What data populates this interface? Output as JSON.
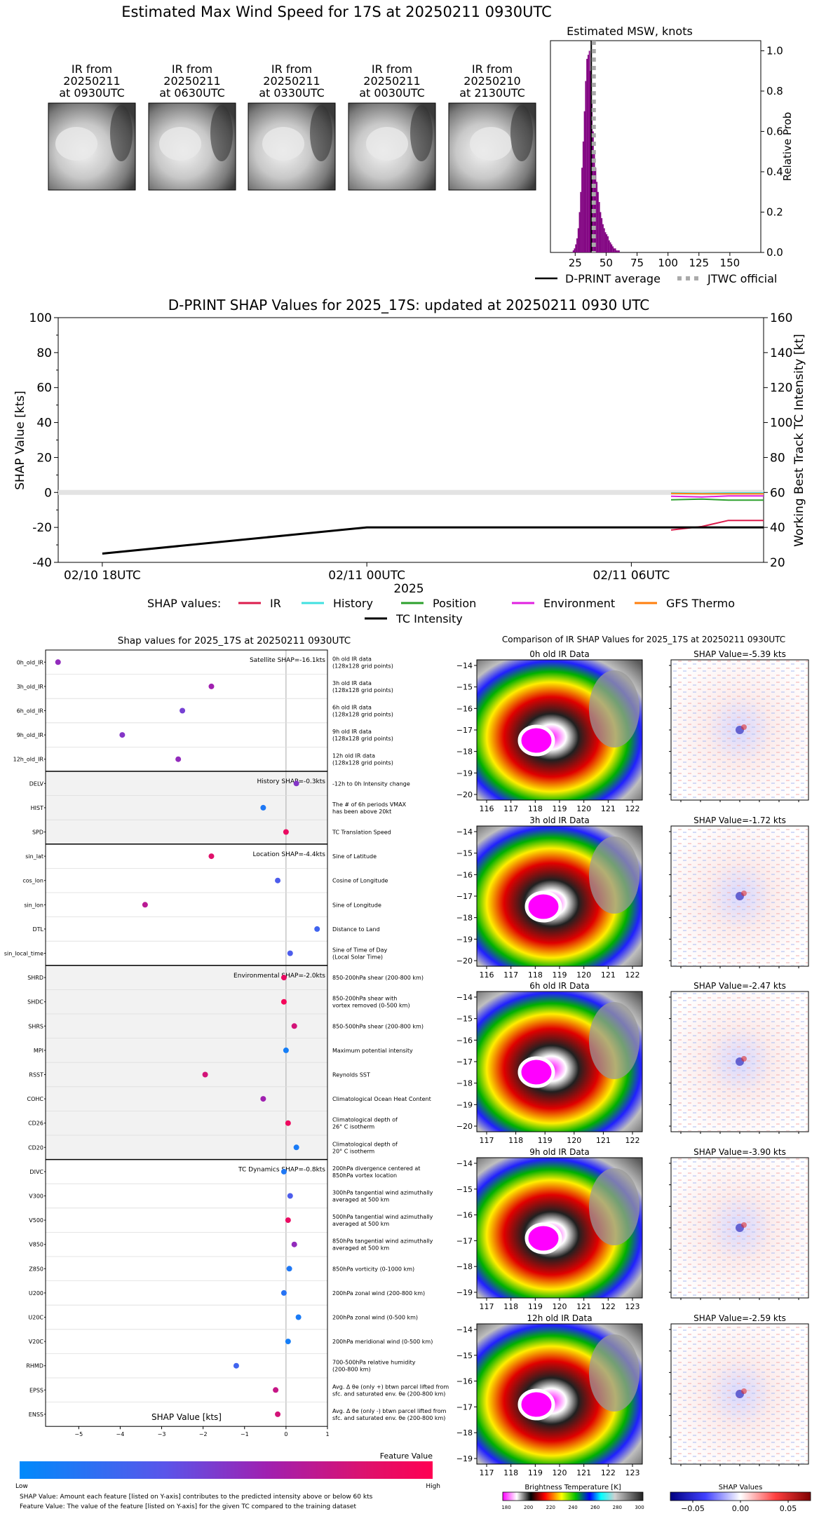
{
  "header": {
    "title": "Estimated Max Wind Speed for 17S at 20250211 0930UTC"
  },
  "ir_thumbnails": [
    {
      "line1": "IR from",
      "line2": "20250211",
      "line3": "at 0930UTC"
    },
    {
      "line1": "IR from",
      "line2": "20250211",
      "line3": "at 0630UTC"
    },
    {
      "line1": "IR from",
      "line2": "20250211",
      "line3": "at 0330UTC"
    },
    {
      "line1": "IR from",
      "line2": "20250211",
      "line3": "at 0030UTC"
    },
    {
      "line1": "IR from",
      "line2": "20250210",
      "line3": "at 2130UTC"
    }
  ],
  "chart_data": [
    {
      "id": "msw_histogram",
      "type": "bar",
      "title": "Estimated MSW, knots",
      "xlabel": "",
      "ylabel": "Relative Prob",
      "xlim": [
        5,
        175
      ],
      "ylim": [
        0,
        1.05
      ],
      "xticks": [
        25,
        50,
        75,
        100,
        125,
        150
      ],
      "yticks": [
        0.0,
        0.2,
        0.4,
        0.6,
        0.8,
        1.0
      ],
      "ytick_labels": [
        "0.0",
        "0.2",
        "0.4",
        "0.6",
        "0.8",
        "1.0"
      ],
      "bin_width": 1,
      "bins": [
        23,
        24,
        25,
        26,
        27,
        28,
        29,
        30,
        31,
        32,
        33,
        34,
        35,
        36,
        37,
        38,
        39,
        40,
        41,
        42,
        43,
        44,
        45,
        46,
        47,
        48,
        49,
        50,
        51,
        52,
        53,
        54,
        55,
        56,
        57,
        58,
        59,
        60
      ],
      "values": [
        0.01,
        0.02,
        0.04,
        0.07,
        0.12,
        0.2,
        0.3,
        0.42,
        0.55,
        0.7,
        0.85,
        0.96,
        0.98,
        1.0,
        0.9,
        0.75,
        0.6,
        0.5,
        0.42,
        0.35,
        0.3,
        0.25,
        0.2,
        0.17,
        0.14,
        0.12,
        0.1,
        0.09,
        0.08,
        0.06,
        0.05,
        0.04,
        0.03,
        0.02,
        0.02,
        0.01,
        0.01,
        0.01
      ],
      "dprint_average": 38,
      "jtwc_official": 40,
      "legend": [
        {
          "label": "D-PRINT average",
          "style": "solid",
          "color": "#000000"
        },
        {
          "label": "JTWC official",
          "style": "dotted",
          "color": "#aaaaaa"
        }
      ]
    },
    {
      "id": "shap_timeseries",
      "type": "line",
      "title": "D-PRINT SHAP Values for 2025_17S: updated at 20250211 0930 UTC",
      "xlabel": "2025",
      "ylabel": "SHAP Value [kts]",
      "ylabel_right": "Working Best Track TC Intensity [kt]",
      "ylim": [
        -40,
        100
      ],
      "ylim_right": [
        20,
        160
      ],
      "yticks": [
        -40,
        -20,
        0,
        20,
        40,
        60,
        80,
        100
      ],
      "yticks_right": [
        20,
        40,
        60,
        80,
        100,
        120,
        140,
        160
      ],
      "xlim_hours": [
        -1,
        15
      ],
      "xticks_hours": [
        0,
        6,
        12
      ],
      "xtick_labels": [
        "02/10 18UTC",
        "02/11 00UTC",
        "02/11 06UTC"
      ],
      "legend_title": "SHAP values:",
      "series": [
        {
          "name": "IR",
          "color": "#dc1c4c",
          "axis": "left",
          "x": [
            12.9,
            13.6,
            14.2,
            15.0
          ],
          "y": [
            -21.5,
            -19.5,
            -16.0,
            -16.0
          ]
        },
        {
          "name": "History",
          "color": "#40e0e0",
          "axis": "left",
          "x": [
            12.9,
            13.6,
            14.2,
            15.0
          ],
          "y": [
            -0.3,
            -0.5,
            -0.3,
            -0.3
          ]
        },
        {
          "name": "Position",
          "color": "#2ca02c",
          "axis": "left",
          "x": [
            12.9,
            13.6,
            14.2,
            15.0
          ],
          "y": [
            -4.2,
            -3.8,
            -4.4,
            -4.4
          ]
        },
        {
          "name": "Environment",
          "color": "#e020e0",
          "axis": "left",
          "x": [
            12.9,
            13.6,
            14.2,
            15.0
          ],
          "y": [
            -2.2,
            -2.6,
            -2.0,
            -2.0
          ]
        },
        {
          "name": "GFS Thermo",
          "color": "#ff7f0e",
          "axis": "left",
          "x": [
            12.9,
            13.6,
            14.2,
            15.0
          ],
          "y": [
            -0.6,
            -0.8,
            -0.8,
            -0.8
          ]
        },
        {
          "name": "TC Intensity",
          "color": "#000000",
          "axis": "right",
          "x": [
            0,
            6,
            12,
            15
          ],
          "y": [
            25,
            40,
            40,
            40
          ]
        }
      ]
    },
    {
      "id": "shap_features",
      "type": "scatter",
      "title": "Shap values for 2025_17S at 20250211 0930UTC",
      "xlabel": "SHAP Value [kts]",
      "xlim": [
        -5.8,
        1.0
      ],
      "xticks": [
        -5,
        -4,
        -3,
        -2,
        -1,
        0,
        1
      ],
      "colorbar": {
        "title": "Feature Value",
        "low": "Low",
        "high": "High"
      },
      "groups": [
        {
          "label": "Satellite SHAP=-16.1kts",
          "shade": false,
          "features": [
            {
              "name": "0h_old_IR",
              "desc": [
                "0h old IR data",
                "(128x128 grid points)"
              ],
              "shap": -5.5,
              "fv": 0.55
            },
            {
              "name": "3h_old_IR",
              "desc": [
                "3h old IR data",
                "(128x128 grid points)"
              ],
              "shap": -1.8,
              "fv": 0.6
            },
            {
              "name": "6h_old_IR",
              "desc": [
                "6h old IR data",
                "(128x128 grid points)"
              ],
              "shap": -2.5,
              "fv": 0.45
            },
            {
              "name": "9h_old_IR",
              "desc": [
                "9h old IR data",
                "(128x128 grid points)"
              ],
              "shap": -3.95,
              "fv": 0.5
            },
            {
              "name": "12h_old_IR",
              "desc": [
                "12h old IR data",
                "(128x128 grid points)"
              ],
              "shap": -2.6,
              "fv": 0.55
            }
          ]
        },
        {
          "label": "History SHAP=-0.3kts",
          "shade": true,
          "features": [
            {
              "name": "DELV",
              "desc": [
                "-12h to 0h Intensity change"
              ],
              "shap": 0.25,
              "fv": 0.5
            },
            {
              "name": "HIST",
              "desc": [
                "The # of 6h periods VMAX",
                "has been above 20kt"
              ],
              "shap": -0.55,
              "fv": 0.12
            },
            {
              "name": "SPD",
              "desc": [
                "TC Translation Speed"
              ],
              "shap": 0.0,
              "fv": 0.9
            }
          ]
        },
        {
          "label": "Location SHAP=-4.4kts",
          "shade": false,
          "features": [
            {
              "name": "sin_lat",
              "desc": [
                "Sine of Latitude"
              ],
              "shap": -1.8,
              "fv": 0.85
            },
            {
              "name": "cos_lon",
              "desc": [
                "Cosine of Longitude"
              ],
              "shap": -0.2,
              "fv": 0.3
            },
            {
              "name": "sin_lon",
              "desc": [
                "Sine of Longitude"
              ],
              "shap": -3.4,
              "fv": 0.7
            },
            {
              "name": "DTL",
              "desc": [
                "Distance to Land"
              ],
              "shap": 0.75,
              "fv": 0.25
            },
            {
              "name": "sin_local_time",
              "desc": [
                "Sine of Time of Day",
                "(Local Solar Time)"
              ],
              "shap": 0.1,
              "fv": 0.3
            }
          ]
        },
        {
          "label": "Environmental SHAP=-2.0kts",
          "shade": true,
          "features": [
            {
              "name": "SHRD",
              "desc": [
                "850-200hPa shear (200-800 km)"
              ],
              "shap": -0.05,
              "fv": 0.9
            },
            {
              "name": "SHDC",
              "desc": [
                "850-200hPa shear with",
                "vortex removed (0-500 km)"
              ],
              "shap": -0.05,
              "fv": 0.95
            },
            {
              "name": "SHRS",
              "desc": [
                "850-500hPa shear (200-800 km)"
              ],
              "shap": 0.2,
              "fv": 0.8
            },
            {
              "name": "MPI",
              "desc": [
                "Maximum potential intensity"
              ],
              "shap": 0.0,
              "fv": 0.08
            },
            {
              "name": "RSST",
              "desc": [
                "Reynolds SST"
              ],
              "shap": -1.95,
              "fv": 0.8
            },
            {
              "name": "COHC",
              "desc": [
                "Climatological Ocean Heat Content"
              ],
              "shap": -0.55,
              "fv": 0.6
            },
            {
              "name": "CD26",
              "desc": [
                "Climatological depth of",
                "26° C isotherm"
              ],
              "shap": 0.05,
              "fv": 0.92
            },
            {
              "name": "CD20",
              "desc": [
                "Climatological depth of",
                "20° C isotherm"
              ],
              "shap": 0.25,
              "fv": 0.1
            }
          ]
        },
        {
          "label": "TC Dynamics SHAP=-0.8kts",
          "shade": false,
          "features": [
            {
              "name": "DIVC",
              "desc": [
                "200hPa divergence centered at",
                "850hPa vortex location"
              ],
              "shap": -0.05,
              "fv": 0.12
            },
            {
              "name": "V300",
              "desc": [
                "300hPa tangential wind azimuthally",
                "averaged at 500 km"
              ],
              "shap": 0.1,
              "fv": 0.3
            },
            {
              "name": "V500",
              "desc": [
                "500hPa tangential wind azimuthally",
                "averaged at 500 km"
              ],
              "shap": 0.05,
              "fv": 0.9
            },
            {
              "name": "V850",
              "desc": [
                "850hPa tangential wind azimuthally",
                "averaged at 500 km"
              ],
              "shap": 0.2,
              "fv": 0.55
            },
            {
              "name": "Z850",
              "desc": [
                "850hPa vorticity (0-1000 km)"
              ],
              "shap": 0.08,
              "fv": 0.12
            },
            {
              "name": "U200",
              "desc": [
                "200hPa zonal wind (200-800 km)"
              ],
              "shap": -0.05,
              "fv": 0.15
            },
            {
              "name": "U20C",
              "desc": [
                "200hPa zonal wind (0-500 km)"
              ],
              "shap": 0.3,
              "fv": 0.1
            },
            {
              "name": "V20C",
              "desc": [
                "200hPa meridional wind (0-500 km)"
              ],
              "shap": 0.05,
              "fv": 0.08
            },
            {
              "name": "RHMD",
              "desc": [
                "700-500hPa relative humidity",
                "(200-800 km)"
              ],
              "shap": -1.2,
              "fv": 0.25
            },
            {
              "name": "EPSS",
              "desc": [
                "Avg. Δ θe (only +) btwn parcel lifted from",
                "sfc. and saturated env. θe (200-800 km)"
              ],
              "shap": -0.25,
              "fv": 0.75
            },
            {
              "name": "ENSS",
              "desc": [
                "Avg. Δ θe (only -) btwn parcel lifted from",
                "sfc. and saturated env. θe (200-800 km)"
              ],
              "shap": -0.2,
              "fv": 0.8
            }
          ]
        }
      ]
    }
  ],
  "comparison": {
    "title": "Comparison of IR SHAP Values for 2025_17S at 20250211 0930UTC",
    "panels": [
      {
        "ir_title": "0h old IR Data",
        "shap_title": "SHAP Value=-5.39 kts",
        "yticks": [
          "-14",
          "-15",
          "-16",
          "-17",
          "-18",
          "-19",
          "-20"
        ],
        "xticks": [
          "116",
          "117",
          "118",
          "119",
          "120",
          "121",
          "122"
        ]
      },
      {
        "ir_title": "3h old IR Data",
        "shap_title": "SHAP Value=-1.72 kts",
        "yticks": [
          "-14",
          "-15",
          "-16",
          "-17",
          "-18",
          "-19",
          "-20"
        ],
        "xticks": [
          "116",
          "117",
          "118",
          "119",
          "120",
          "121",
          "122"
        ]
      },
      {
        "ir_title": "6h old IR Data",
        "shap_title": "SHAP Value=-2.47 kts",
        "yticks": [
          "-14",
          "-15",
          "-16",
          "-17",
          "-18",
          "-19",
          "-20"
        ],
        "xticks": [
          "117",
          "118",
          "119",
          "120",
          "121",
          "122"
        ]
      },
      {
        "ir_title": "9h old IR Data",
        "shap_title": "SHAP Value=-3.90 kts",
        "yticks": [
          "-14",
          "-15",
          "-16",
          "-17",
          "-18",
          "-19"
        ],
        "xticks": [
          "117",
          "118",
          "119",
          "120",
          "121",
          "122",
          "123"
        ]
      },
      {
        "ir_title": "12h old IR Data",
        "shap_title": "SHAP Value=-2.59 kts",
        "yticks": [
          "-14",
          "-15",
          "-16",
          "-17",
          "-18",
          "-19"
        ],
        "xticks": [
          "117",
          "118",
          "119",
          "120",
          "121",
          "122",
          "123"
        ]
      }
    ],
    "bt_colorbar": {
      "title": "Brightness Temperature [K]",
      "ticks": [
        "180",
        "200",
        "220",
        "240",
        "260",
        "280",
        "300"
      ]
    },
    "shap_colorbar": {
      "title": "SHAP Values",
      "ticks": [
        "−0.05",
        "0.00",
        "0.05"
      ]
    }
  },
  "footer": {
    "note1": "SHAP Value: Amount each feature [listed on Y-axis] contributes to the predicted intensity above or below 60 kts",
    "note2": "Feature Value: The value of the feature [listed on Y-axis] for the given TC compared to the training dataset"
  }
}
